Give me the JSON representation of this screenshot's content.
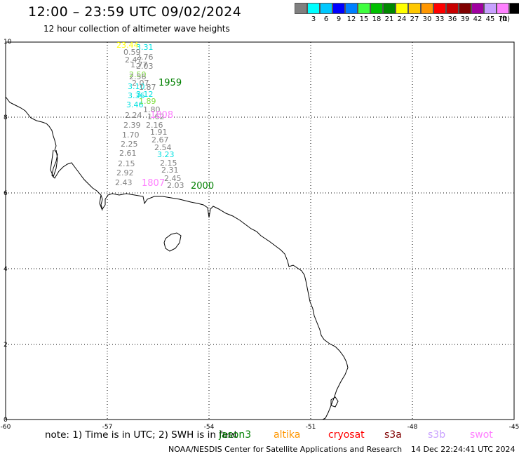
{
  "header": {
    "title": "12:00 – 23:59 UTC 09/02/2024",
    "subtitle": "12 hour collection of altimeter wave heights"
  },
  "color_scale": {
    "unit": "(ft)",
    "items": [
      {
        "label": "",
        "color": "#808080"
      },
      {
        "label": "3",
        "color": "#00ffff"
      },
      {
        "label": "6",
        "color": "#00c8ff"
      },
      {
        "label": "9",
        "color": "#0000ff"
      },
      {
        "label": "12",
        "color": "#0080ff"
      },
      {
        "label": "15",
        "color": "#40ff40"
      },
      {
        "label": "18",
        "color": "#00c000"
      },
      {
        "label": "21",
        "color": "#008800"
      },
      {
        "label": "24",
        "color": "#ffff00"
      },
      {
        "label": "27",
        "color": "#ffc800"
      },
      {
        "label": "30",
        "color": "#ff9600"
      },
      {
        "label": "33",
        "color": "#ff0000"
      },
      {
        "label": "36",
        "color": "#c80000"
      },
      {
        "label": "39",
        "color": "#800000"
      },
      {
        "label": "42",
        "color": "#a000a0"
      },
      {
        "label": "45",
        "color": "#c8a0ff"
      },
      {
        "label": "70",
        "color": "#ff80ff"
      },
      {
        "label": "",
        "color": "#000000"
      }
    ]
  },
  "axes": {
    "x_ticks": [
      "-60",
      "-57",
      "-54",
      "-51",
      "-48",
      "-45"
    ],
    "y_ticks": [
      "0",
      "2",
      "4",
      "6",
      "8",
      "10"
    ]
  },
  "track_times": [
    {
      "text": "1959",
      "color": "#008000"
    },
    {
      "text": "2000",
      "color": "#008000"
    },
    {
      "text": "1807",
      "color": "#ff80ff"
    },
    {
      "text": "1808",
      "color": "#ff80ff"
    }
  ],
  "wave_values": [
    {
      "text": "23.44",
      "color": "#ffff00"
    },
    {
      "text": "3.31",
      "color": "#00e0e0"
    },
    {
      "text": "0.59",
      "color": "#808080"
    },
    {
      "text": "2.76",
      "color": "#808080"
    },
    {
      "text": "2.47",
      "color": "#808080"
    },
    {
      "text": "1.77",
      "color": "#808080"
    },
    {
      "text": "2.03",
      "color": "#808080"
    },
    {
      "text": "2.50",
      "color": "#80e040"
    },
    {
      "text": "2.56",
      "color": "#808080"
    },
    {
      "text": "2.07",
      "color": "#808080"
    },
    {
      "text": "3.10",
      "color": "#00e0e0"
    },
    {
      "text": "1.87",
      "color": "#808080"
    },
    {
      "text": "3.12",
      "color": "#00e0e0"
    },
    {
      "text": "3.36",
      "color": "#00e0e0"
    },
    {
      "text": "1.89",
      "color": "#80e040"
    },
    {
      "text": "3.46",
      "color": "#00e0e0"
    },
    {
      "text": "1.80",
      "color": "#808080"
    },
    {
      "text": "2.24",
      "color": "#808080"
    },
    {
      "text": "1.62",
      "color": "#808080"
    },
    {
      "text": "2.39",
      "color": "#808080"
    },
    {
      "text": "2.16",
      "color": "#808080"
    },
    {
      "text": "1.91",
      "color": "#808080"
    },
    {
      "text": "1.70",
      "color": "#808080"
    },
    {
      "text": "2.67",
      "color": "#808080"
    },
    {
      "text": "2.25",
      "color": "#808080"
    },
    {
      "text": "2.54",
      "color": "#808080"
    },
    {
      "text": "2.61",
      "color": "#808080"
    },
    {
      "text": "3.23",
      "color": "#00e0e0"
    },
    {
      "text": "2.15",
      "color": "#808080"
    },
    {
      "text": "2.15",
      "color": "#808080"
    },
    {
      "text": "2.92",
      "color": "#808080"
    },
    {
      "text": "2.31",
      "color": "#808080"
    },
    {
      "text": "2.45",
      "color": "#808080"
    },
    {
      "text": "2.43",
      "color": "#808080"
    },
    {
      "text": "2.03",
      "color": "#808080"
    }
  ],
  "footer": {
    "note": "note: 1) Time is in UTC; 2) SWH is in feet",
    "satellites": [
      {
        "name": "jason3",
        "color": "#008000"
      },
      {
        "name": "altika",
        "color": "#ff9600"
      },
      {
        "name": "cryosat",
        "color": "#ff0000"
      },
      {
        "name": "s3a",
        "color": "#800000"
      },
      {
        "name": "s3b",
        "color": "#c8a0ff"
      },
      {
        "name": "swot",
        "color": "#ff80ff"
      }
    ],
    "credit": "NOAA/NESDIS Center for Satellite Applications and Research",
    "timestamp": "14 Dec 22:24:41 UTC 2024"
  }
}
